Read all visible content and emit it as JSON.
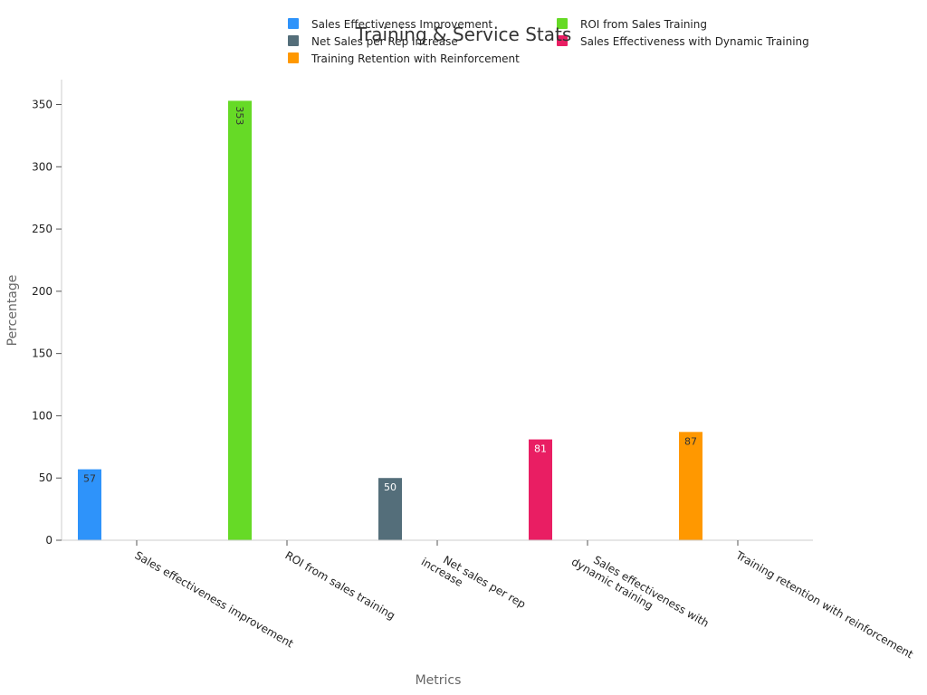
{
  "chart_data": {
    "type": "bar",
    "title": "Training & Service Stats",
    "xlabel": "Metrics",
    "ylabel": "Percentage",
    "ylim": [
      0,
      370
    ],
    "yticks": [
      0,
      50,
      100,
      150,
      200,
      250,
      300,
      350
    ],
    "grid": false,
    "legend_position": "top",
    "categories": [
      "Sales effectiveness improvement",
      "ROI from sales training",
      "Net sales per rep increase",
      "Sales effectiveness with dynamic training",
      "Training retention with reinforcement"
    ],
    "series": [
      {
        "name": "Sales Effectiveness Improvement",
        "color": "#2e93fa",
        "label_color": "#333333",
        "values": [
          57,
          null,
          null,
          null,
          null
        ]
      },
      {
        "name": "ROI from Sales Training",
        "color": "#66da26",
        "label_color": "#333333",
        "values": [
          null,
          353,
          null,
          null,
          null
        ]
      },
      {
        "name": "Net Sales per Rep Increase",
        "color": "#546e7a",
        "label_color": "#ffffff",
        "values": [
          null,
          null,
          50,
          null,
          null
        ]
      },
      {
        "name": "Sales Effectiveness with Dynamic Training",
        "color": "#e91e63",
        "label_color": "#ffffff",
        "values": [
          null,
          null,
          null,
          81,
          null
        ]
      },
      {
        "name": "Training Retention with Reinforcement",
        "color": "#ff9800",
        "label_color": "#333333",
        "values": [
          null,
          null,
          null,
          null,
          87
        ]
      }
    ]
  }
}
